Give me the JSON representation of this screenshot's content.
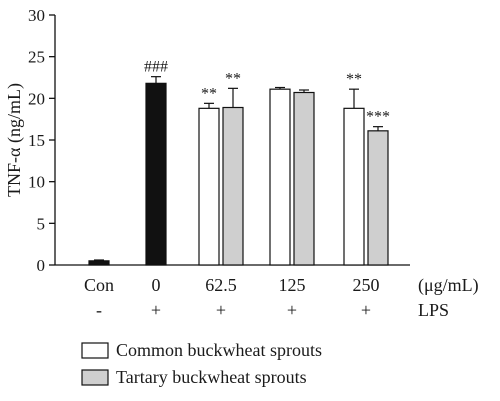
{
  "chart_data": {
    "type": "bar",
    "ylabel": "TNF-α (ng/mL)",
    "ylim": [
      0,
      30
    ],
    "yticks": [
      0,
      5,
      10,
      15,
      20,
      25,
      30
    ],
    "grid": false,
    "legend_position": "bottom",
    "x_unit": "(μg/mL)",
    "lps_label": "LPS",
    "categories": [
      "Con",
      "0",
      "62.5",
      "125",
      "250"
    ],
    "lps": [
      "-",
      "+",
      "+",
      "+",
      "+"
    ],
    "bars": [
      {
        "category": "Con",
        "series": "control",
        "value": 0.5,
        "error": 0.1,
        "sig": ""
      },
      {
        "category": "0",
        "series": "control",
        "value": 21.8,
        "error": 0.8,
        "sig": "###"
      },
      {
        "category": "62.5",
        "series": "Common buckwheat sprouts",
        "value": 18.8,
        "error": 0.6,
        "sig": "**"
      },
      {
        "category": "62.5",
        "series": "Tartary buckwheat sprouts",
        "value": 18.9,
        "error": 2.3,
        "sig": "**"
      },
      {
        "category": "125",
        "series": "Common buckwheat sprouts",
        "value": 21.1,
        "error": 0.2,
        "sig": ""
      },
      {
        "category": "125",
        "series": "Tartary buckwheat sprouts",
        "value": 20.7,
        "error": 0.3,
        "sig": ""
      },
      {
        "category": "250",
        "series": "Common buckwheat sprouts",
        "value": 18.8,
        "error": 2.3,
        "sig": "**"
      },
      {
        "category": "250",
        "series": "Tartary buckwheat sprouts",
        "value": 16.1,
        "error": 0.5,
        "sig": "***"
      }
    ],
    "series": [
      {
        "name": "Common buckwheat sprouts",
        "color": "#ffffff"
      },
      {
        "name": "Tartary buckwheat sprouts",
        "color": "#cfcfcf"
      }
    ],
    "control_color": "#111111"
  }
}
